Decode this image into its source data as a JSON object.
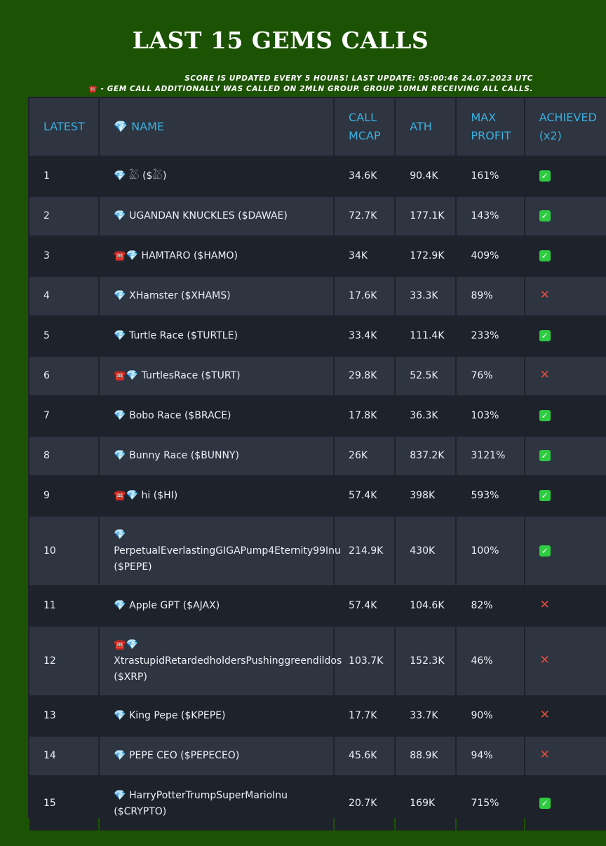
{
  "title": "LAST 15 GEMS CALLS",
  "notes": {
    "line1": "SCORE IS UPDATED EVERY 5 HOURS! LAST UPDATE: 05:00:46 24.07.2023 UTC",
    "line2_icon": "telephone-icon",
    "line2": " - GEM CALL ADDITIONALLY WAS CALLED ON 2MLN GROUP. GROUP 10MLN RECEIVING ALL CALLS."
  },
  "columns": {
    "latest": "LATEST",
    "name": "💎 NAME",
    "call_mcap": "CALL MCAP",
    "ath": "ATH",
    "max_profit": "MAX PROFIT",
    "achieved": "ACHIEVED (x2)"
  },
  "status_icons": {
    "yes": "check-mark-icon",
    "no": "cross-mark-icon"
  },
  "colors": {
    "background": "#1c5204",
    "header_text": "#3ab0e0",
    "check": "#2ecc40",
    "cross": "#e74c3c"
  },
  "rows": [
    {
      "latest": "1",
      "name": "💎 𓅷 ($𓅷)",
      "call_mcap": "34.6K",
      "ath": "90.4K",
      "max_profit": "161%",
      "achieved": true
    },
    {
      "latest": "2",
      "name": "💎 UGANDAN KNUCKLES ($DAWAE)",
      "call_mcap": "72.7K",
      "ath": "177.1K",
      "max_profit": "143%",
      "achieved": true
    },
    {
      "latest": "3",
      "name": "☎️💎 HAMTARO ($HAMO)",
      "call_mcap": "34K",
      "ath": "172.9K",
      "max_profit": "409%",
      "achieved": true
    },
    {
      "latest": "4",
      "name": "💎 XHamster ($XHAMS)",
      "call_mcap": "17.6K",
      "ath": "33.3K",
      "max_profit": "89%",
      "achieved": false
    },
    {
      "latest": "5",
      "name": "💎 Turtle Race ($TURTLE)",
      "call_mcap": "33.4K",
      "ath": "111.4K",
      "max_profit": "233%",
      "achieved": true
    },
    {
      "latest": "6",
      "name": "☎️💎 TurtlesRace ($TURT)",
      "call_mcap": "29.8K",
      "ath": "52.5K",
      "max_profit": "76%",
      "achieved": false
    },
    {
      "latest": "7",
      "name": "💎 Bobo Race ($BRACE)",
      "call_mcap": "17.8K",
      "ath": "36.3K",
      "max_profit": "103%",
      "achieved": true
    },
    {
      "latest": "8",
      "name": "💎 Bunny Race ($BUNNY)",
      "call_mcap": "26K",
      "ath": "837.2K",
      "max_profit": "3121%",
      "achieved": true
    },
    {
      "latest": "9",
      "name": "☎️💎 hi ($HI)",
      "call_mcap": "57.4K",
      "ath": "398K",
      "max_profit": "593%",
      "achieved": true
    },
    {
      "latest": "10",
      "name": "💎 PerpetualEverlastingGIGAPump4Eternity99Inu ($PEPE)",
      "call_mcap": "214.9K",
      "ath": "430K",
      "max_profit": "100%",
      "achieved": true
    },
    {
      "latest": "11",
      "name": "💎 Apple GPT ($AJAX)",
      "call_mcap": "57.4K",
      "ath": "104.6K",
      "max_profit": "82%",
      "achieved": false
    },
    {
      "latest": "12",
      "name": "☎️💎 XtrastupidRetardedholdersPushinggreendildos ($XRP)",
      "call_mcap": "103.7K",
      "ath": "152.3K",
      "max_profit": "46%",
      "achieved": false
    },
    {
      "latest": "13",
      "name": "💎 King Pepe ($KPEPE)",
      "call_mcap": "17.7K",
      "ath": "33.7K",
      "max_profit": "90%",
      "achieved": false
    },
    {
      "latest": "14",
      "name": "💎 PEPE CEO ($PEPECEO)",
      "call_mcap": "45.6K",
      "ath": "88.9K",
      "max_profit": "94%",
      "achieved": false
    },
    {
      "latest": "15",
      "name": "💎 HarryPotterTrumpSuperMarioInu ($CRYPTO)",
      "call_mcap": "20.7K",
      "ath": "169K",
      "max_profit": "715%",
      "achieved": true
    }
  ]
}
